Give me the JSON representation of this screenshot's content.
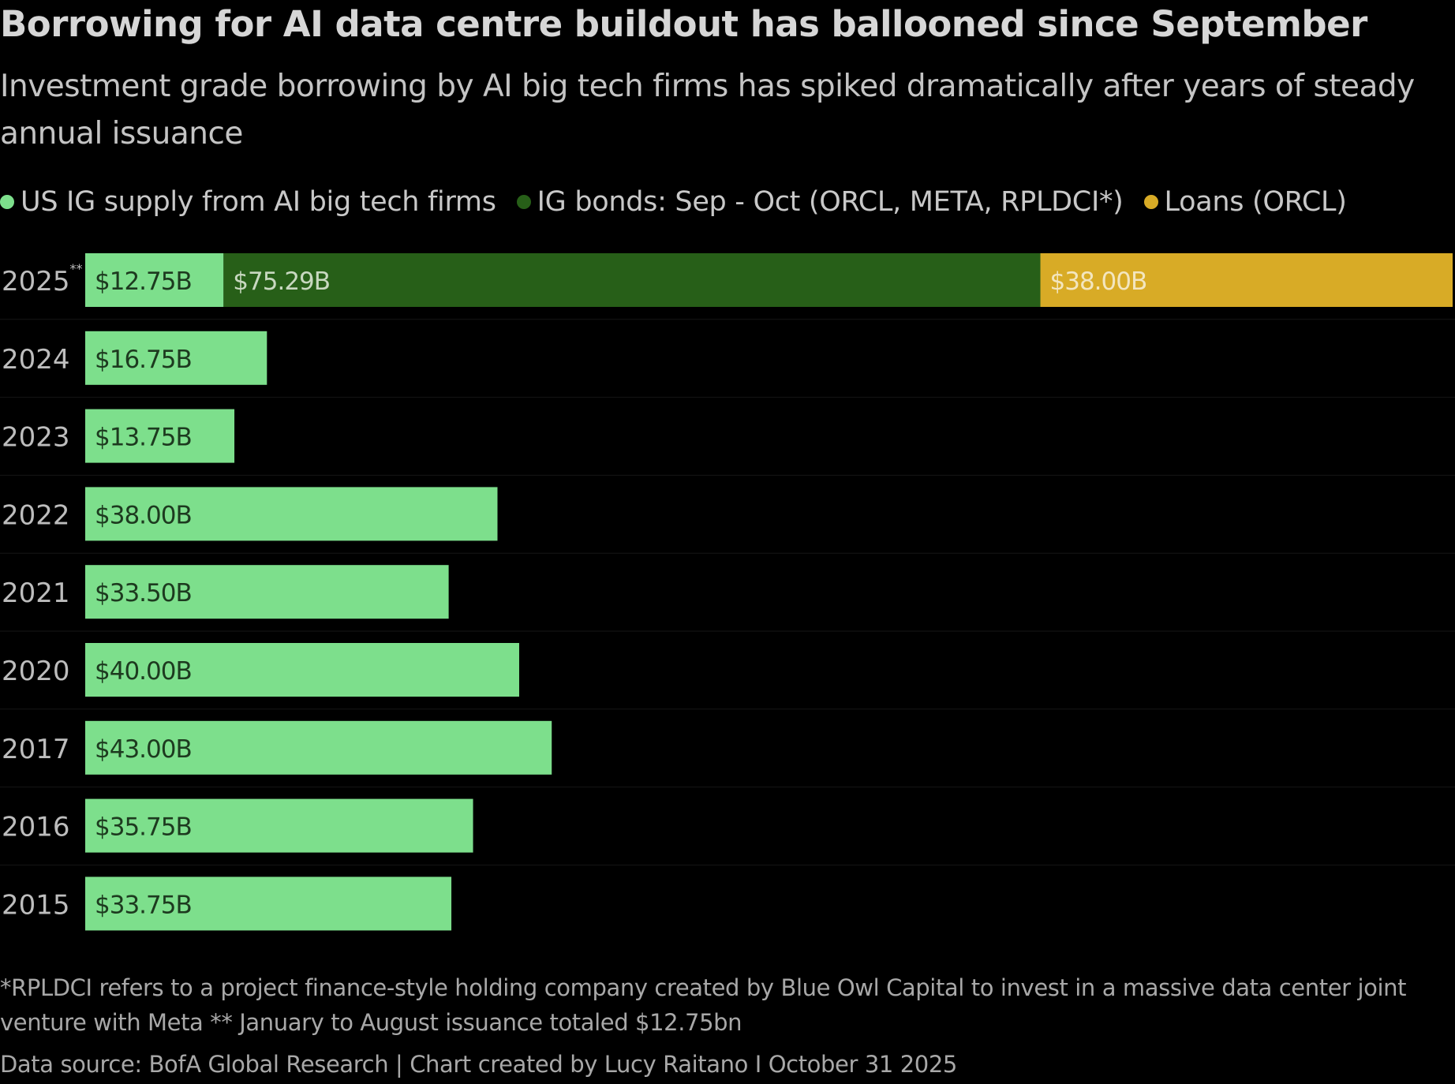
{
  "chart_data": {
    "type": "bar",
    "orientation": "horizontal",
    "stacked": true,
    "title": "Borrowing for AI data centre buildout has ballooned since September",
    "subtitle": "Investment grade borrowing by AI big tech firms has spiked dramatically after years of steady annual issuance",
    "categories": [
      "2025**",
      "2024",
      "2023",
      "2022",
      "2021",
      "2020",
      "2017",
      "2016",
      "2015"
    ],
    "series": [
      {
        "name": "US IG supply from AI big tech firms",
        "color": "#7ddf8c",
        "label_color": "#1d3a1f",
        "values": [
          12.75,
          16.75,
          13.75,
          38.0,
          33.5,
          40.0,
          43.0,
          35.75,
          33.75
        ],
        "labels": [
          "$12.75B",
          "$16.75B",
          "$13.75B",
          "$38.00B",
          "$33.50B",
          "$40.00B",
          "$43.00B",
          "$35.75B",
          "$33.75B"
        ]
      },
      {
        "name": "IG bonds: Sep - Oct (ORCL, META, RPLDCI*)",
        "color": "#275f18",
        "label_color": "#c8d8c0",
        "values": [
          75.29,
          null,
          null,
          null,
          null,
          null,
          null,
          null,
          null
        ],
        "labels": [
          "$75.29B",
          "",
          "",
          "",
          "",
          "",
          "",
          "",
          ""
        ]
      },
      {
        "name": "Loans (ORCL)",
        "color": "#d8ab26",
        "label_color": "#f3e6bf",
        "values": [
          38.0,
          null,
          null,
          null,
          null,
          null,
          null,
          null,
          null
        ],
        "labels": [
          "$38.00B",
          "",
          "",
          "",
          "",
          "",
          "",
          "",
          ""
        ]
      }
    ],
    "xlim": [
      0,
      126.04
    ],
    "grid": false,
    "legend": "top-left"
  },
  "footnote": "*RPLDCI refers to a project finance-style holding company created by Blue Owl Capital to invest in a massive data center joint venture with Meta ** January to August issuance totaled $12.75bn",
  "source": "Data source: BofA Global Research | Chart created by Lucy Raitano I October 31 2025"
}
